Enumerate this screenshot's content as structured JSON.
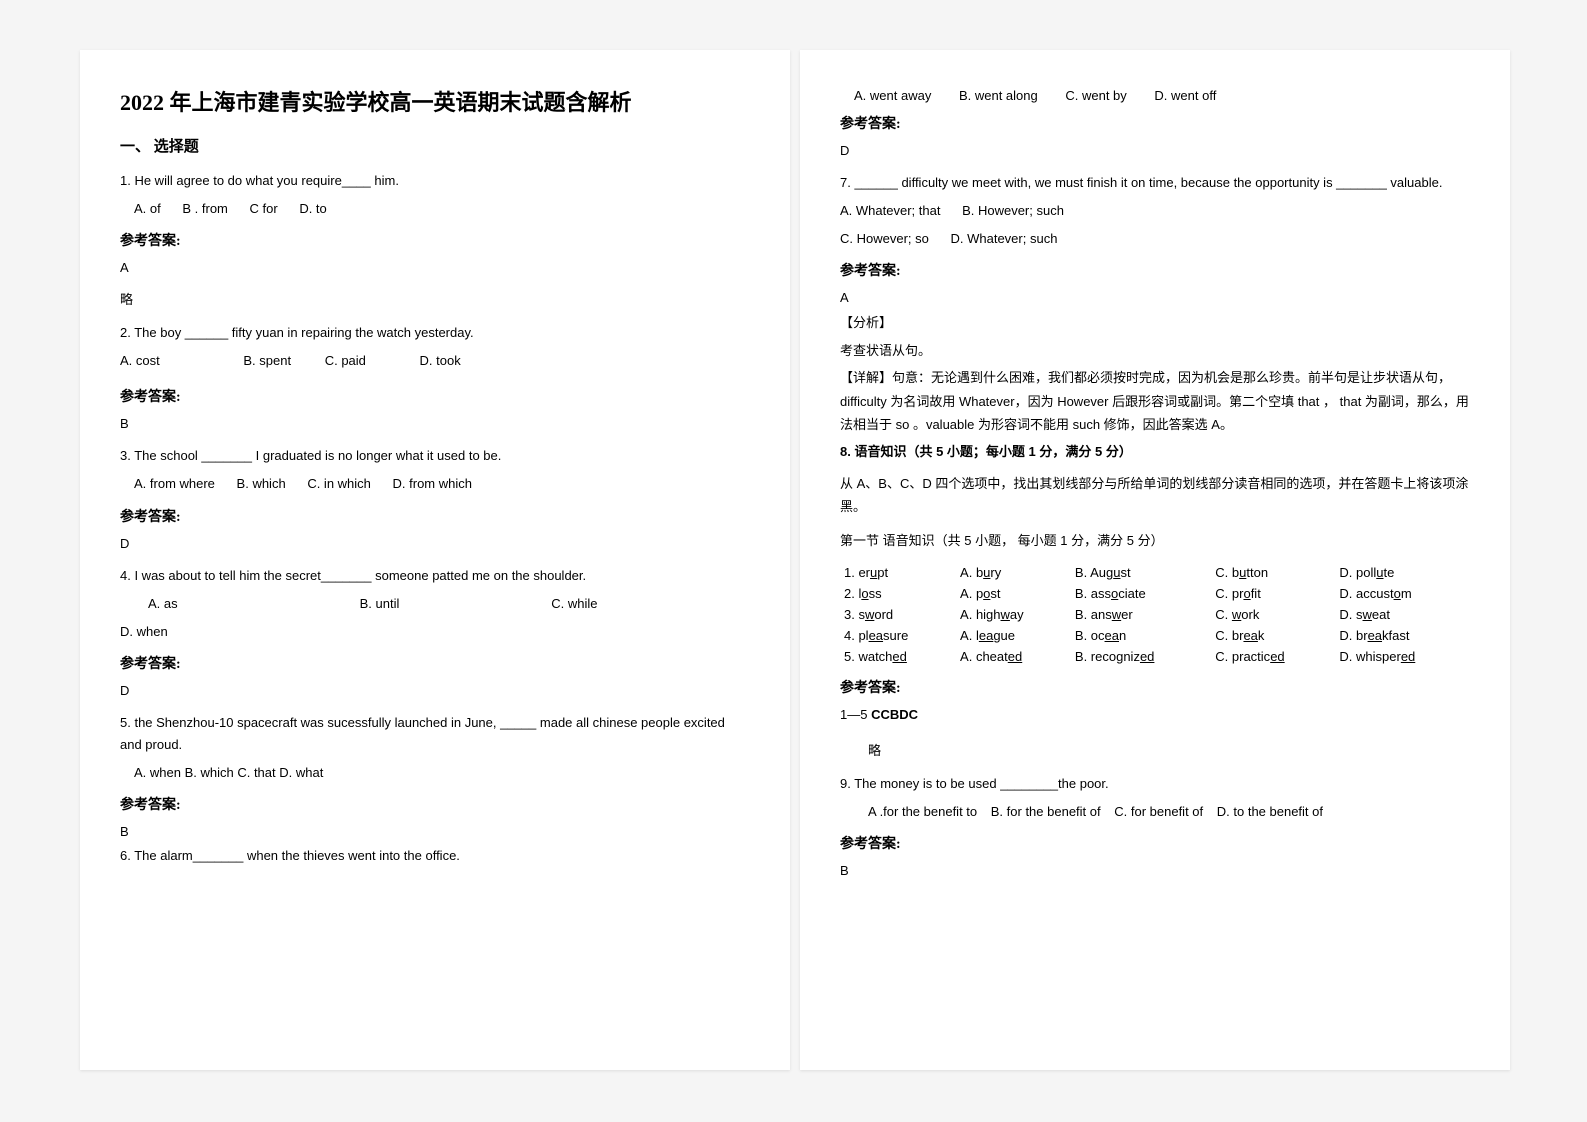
{
  "title": "2022 年上海市建青实验学校高一英语期末试题含解析",
  "section1": "一、 选择题",
  "answer_label": "参考答案:",
  "q1": {
    "text": "1. He will agree to do what you require____ him.",
    "a": "A. of",
    "b": "B . from",
    "c": "C for",
    "d": "D. to",
    "ans": "A",
    "note": "略"
  },
  "q2": {
    "text": "2. The boy ______ fifty yuan in repairing the watch yesterday.",
    "a": "A. cost",
    "b": "B.  spent",
    "c": "C. paid",
    "d": "D. took",
    "ans": "B"
  },
  "q3": {
    "text": "3. The school _______ I graduated is no longer what it used to be.",
    "a": "A. from where",
    "b": "B. which",
    "c": "C. in which",
    "d": "D. from which",
    "ans": "D"
  },
  "q4": {
    "text": "4. I was about to tell him the secret_______ someone patted me on the shoulder.",
    "a": "A. as",
    "b": "B. until",
    "c": "C. while",
    "d": "D. when",
    "ans": "D"
  },
  "q5": {
    "text": "5. the Shenzhou-10 spacecraft was sucessfully launched in June, _____ made all chinese people excited and proud.",
    "opts": "A. when   B. which   C. that   D. what",
    "ans": "B"
  },
  "q6": {
    "text": "6. The alarm_______ when the thieves went into the office.",
    "a": "A. went away",
    "b": "B. went along",
    "c": "C. went by",
    "d": "D. went off",
    "ans": "D"
  },
  "q7": {
    "text": "7. ______ difficulty we meet with, we must finish it on time, because the opportunity is _______ valuable.",
    "a": "A. Whatever; that",
    "b": "B. However; such",
    "c": "C. However; so",
    "d": "D. Whatever; such",
    "ans": "A",
    "ana_h": "【分析】",
    "ana1": "考查状语从句。",
    "ana2": "【详解】句意：无论遇到什么困难，我们都必须按时完成，因为机会是那么珍贵。前半句是让步状语从句，   difficulty 为名词故用 Whatever，因为  However 后跟形容词或副词。第二个空填 that ， that 为副词，那么，用法相当于 so 。valuable 为形容词不能用 such 修饰，因此答案选 A。"
  },
  "q8": {
    "header": "8. 语音知识（共 5 小题；每小题 1 分，满分 5 分）",
    "intro": "从 A、B、C、D 四个选项中，找出其划线部分与所给单词的划线部分读音相同的选项，并在答题卡上将该项涂黑。",
    "sub": "第一节 语音知识（共 5 小题，  每小题 1 分，满分 5 分）",
    "rows": [
      {
        "n": "1. er",
        "u1": "u",
        "t1": "pt",
        "a": "A. b",
        "ua": "u",
        "ta": "ry",
        "b": "B. Aug",
        "ub": "u",
        "tb": "st",
        "c": "C. b",
        "uc": "u",
        "tc": "tton",
        "d": "D. poll",
        "ud": "u",
        "td": "te"
      },
      {
        "n": "2. l",
        "u1": "o",
        "t1": "ss",
        "a": "A. p",
        "ua": "o",
        "ta": "st",
        "b": "B. ass",
        "ub": "o",
        "tb": "ciate",
        "c": "C. pr",
        "uc": "o",
        "tc": "fit",
        "d": "D. accust",
        "ud": "o",
        "td": "m"
      },
      {
        "n": "3. s",
        "u1": "w",
        "t1": "ord",
        "a": "A. high",
        "ua": "w",
        "ta": "ay",
        "b": "B. ans",
        "ub": "w",
        "tb": "er",
        "c": "C. ",
        "uc": "w",
        "tc": "ork",
        "d": "D. s",
        "ud": "w",
        "td": "eat"
      },
      {
        "n": "4. pl",
        "u1": "ea",
        "t1": "sure",
        "a": "A. l",
        "ua": "ea",
        "ta": "gue",
        "b": "B. oc",
        "ub": "ea",
        "tb": "n",
        "c": "C. br",
        "uc": "ea",
        "tc": "k",
        "d": "D. br",
        "ud": "ea",
        "td": "kfast"
      },
      {
        "n": "5. watch",
        "u1": "ed",
        "t1": "",
        "a": "A. cheat",
        "ua": "ed",
        "ta": "",
        "b": "B. recogniz",
        "ub": "ed",
        "tb": "",
        "c": "C. practic",
        "uc": "ed",
        "tc": "",
        "d": "D. whisper",
        "ud": "ed",
        "td": ""
      }
    ],
    "ans": "1—5 CCBDC",
    "note": "略"
  },
  "q9": {
    "text": "9. The money is to be used ________the poor.",
    "a": "A .for the benefit to",
    "b": "B. for the benefit of",
    "c": "C. for benefit of",
    "d": "D. to the benefit of",
    "ans": "B"
  }
}
